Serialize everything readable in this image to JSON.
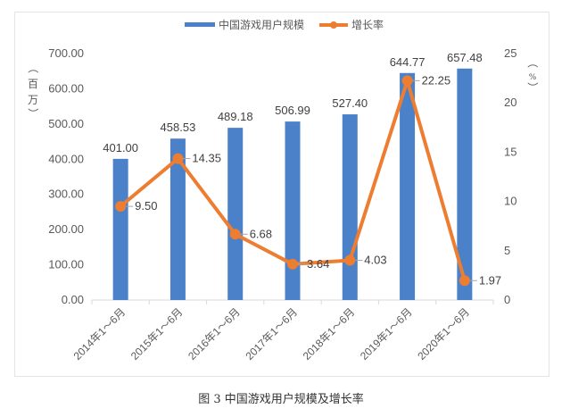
{
  "caption": "图 3 中国游戏用户规模及增长率",
  "legend": {
    "bar_label": "中国游戏用户规模",
    "line_label": "增长率"
  },
  "axis": {
    "left_unit": "（百万）",
    "right_unit": "（%）"
  },
  "colors": {
    "bar": "#4a81c9",
    "line": "#ed7d31",
    "frame": "#e4e4e4",
    "text": "#595959"
  },
  "chart_data": {
    "type": "bar+line",
    "title": "",
    "categories": [
      "2014年1～6月",
      "2015年1～6月",
      "2016年1～6月",
      "2017年1～6月",
      "2018年1～6月",
      "2019年1～6月",
      "2020年1～6月"
    ],
    "series": [
      {
        "name": "中国游戏用户规模",
        "type": "bar",
        "axis": "left",
        "values": [
          401.0,
          458.53,
          489.18,
          506.99,
          527.4,
          644.77,
          657.48
        ]
      },
      {
        "name": "增长率",
        "type": "line",
        "axis": "right",
        "values": [
          9.5,
          14.35,
          6.68,
          3.64,
          4.03,
          22.25,
          1.97
        ]
      }
    ],
    "ylabel_left": "（百万）",
    "ylabel_right": "（%）",
    "ylim_left": [
      0,
      700
    ],
    "ylim_right": [
      0,
      25
    ],
    "yticks_left": [
      "0.00",
      "100.00",
      "200.00",
      "300.00",
      "400.00",
      "500.00",
      "600.00",
      "700.00"
    ],
    "yticks_right": [
      "0",
      "5",
      "10",
      "15",
      "20",
      "25"
    ],
    "grid": false,
    "legend_position": "top"
  }
}
